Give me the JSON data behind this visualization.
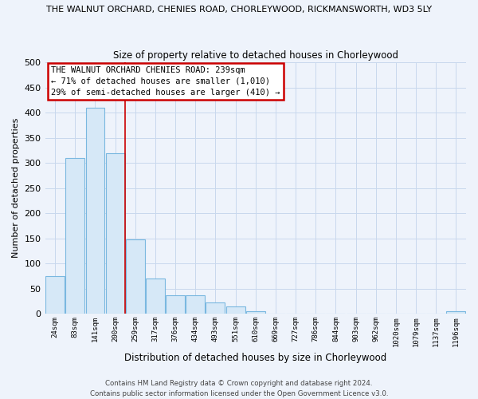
{
  "title": "THE WALNUT ORCHARD, CHENIES ROAD, CHORLEYWOOD, RICKMANSWORTH, WD3 5LY",
  "subtitle": "Size of property relative to detached houses in Chorleywood",
  "xlabel": "Distribution of detached houses by size in Chorleywood",
  "ylabel": "Number of detached properties",
  "bar_labels": [
    "24sqm",
    "83sqm",
    "141sqm",
    "200sqm",
    "259sqm",
    "317sqm",
    "376sqm",
    "434sqm",
    "493sqm",
    "551sqm",
    "610sqm",
    "669sqm",
    "727sqm",
    "786sqm",
    "844sqm",
    "903sqm",
    "962sqm",
    "1020sqm",
    "1079sqm",
    "1137sqm",
    "1196sqm"
  ],
  "bar_values": [
    75,
    310,
    410,
    320,
    148,
    70,
    37,
    37,
    22,
    14,
    5,
    0,
    0,
    0,
    0,
    0,
    0,
    0,
    0,
    0,
    5
  ],
  "bar_color": "#d6e8f7",
  "bar_edge_color": "#7ab8e0",
  "vline_after_index": 3,
  "vline_color": "#cc0000",
  "ylim": [
    0,
    500
  ],
  "yticks": [
    0,
    50,
    100,
    150,
    200,
    250,
    300,
    350,
    400,
    450,
    500
  ],
  "annotation_box_text": "THE WALNUT ORCHARD CHENIES ROAD: 239sqm\n← 71% of detached houses are smaller (1,010)\n29% of semi-detached houses are larger (410) →",
  "footer_line1": "Contains HM Land Registry data © Crown copyright and database right 2024.",
  "footer_line2": "Contains public sector information licensed under the Open Government Licence v3.0.",
  "grid_color": "#c8d8ed",
  "plot_bg_color": "#eef3fb",
  "fig_bg_color": "#eef3fb",
  "title_fontsize": 8.0,
  "subtitle_fontsize": 8.5,
  "figsize": [
    6.0,
    5.0
  ],
  "dpi": 100
}
